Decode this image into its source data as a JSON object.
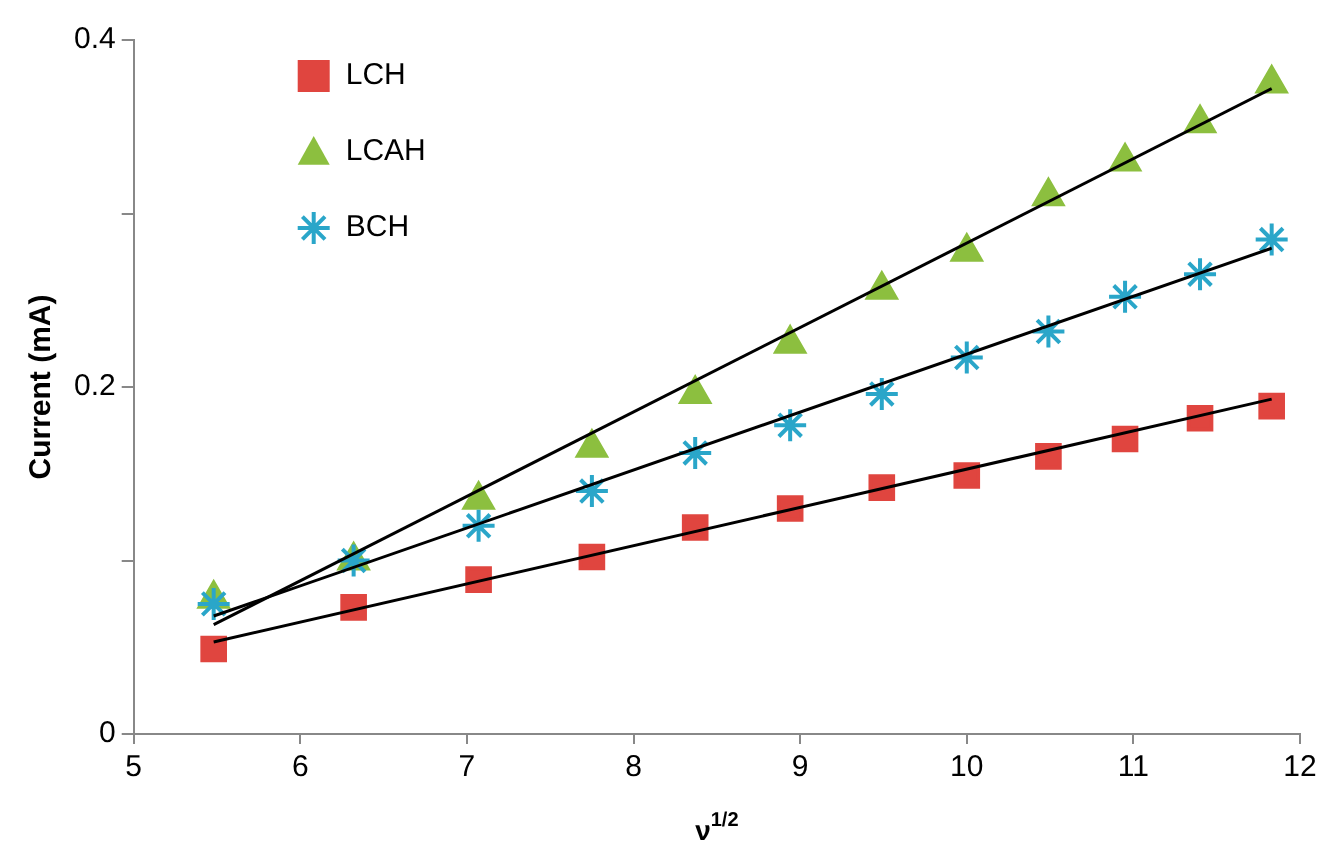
{
  "chart_data": {
    "type": "scatter",
    "xlabel": "ν$^{1/2}$",
    "ylabel": "Current (mA)",
    "xlim": [
      5,
      12
    ],
    "xticks": [
      5,
      6,
      7,
      8,
      9,
      10,
      11,
      12
    ],
    "ylim": [
      0,
      0.4
    ],
    "yticks": [
      0,
      {
        "value": 0.1,
        "label": null
      },
      0.2,
      {
        "value": 0.3,
        "label": null
      },
      0.4
    ],
    "legend": "top left",
    "x": [
      5.48,
      6.32,
      7.07,
      7.75,
      8.37,
      8.94,
      9.49,
      10,
      10.49,
      10.95,
      11.4,
      11.83
    ],
    "series": [
      {
        "name": "LCH",
        "color": "#e0453f",
        "marker": "square",
        "values": [
          0.049,
          0.073,
          0.089,
          0.102,
          0.119,
          0.13,
          0.142,
          0.149,
          0.16,
          0.17,
          0.182,
          0.189
        ]
      },
      {
        "name": "LCAH",
        "color": "#8cbf3f",
        "marker": "triangle",
        "values": [
          0.078,
          0.1,
          0.135,
          0.165,
          0.196,
          0.225,
          0.256,
          0.278,
          0.31,
          0.33,
          0.352,
          0.375
        ]
      },
      {
        "name": "BCH",
        "color": "#2aa6c9",
        "marker": "cross",
        "values": [
          0.075,
          0.1,
          0.12,
          0.14,
          0.162,
          0.178,
          0.196,
          0.217,
          0.232,
          0.252,
          0.265,
          0.285
        ]
      },
      {
        "type": "line",
        "color": "#000000",
        "marker": "none",
        "values": [
          0.053,
          null,
          null,
          null,
          null,
          null,
          null,
          null,
          null,
          null,
          null,
          0.193
        ]
      },
      {
        "type": "line",
        "color": "#000000",
        "marker": "none",
        "values": [
          0.063,
          null,
          null,
          null,
          null,
          null,
          null,
          null,
          null,
          null,
          null,
          0.372
        ]
      },
      {
        "type": "line",
        "color": "#000000",
        "marker": "none",
        "values": [
          0.068,
          null,
          null,
          null,
          null,
          null,
          null,
          null,
          null,
          null,
          null,
          0.28
        ]
      }
    ]
  }
}
